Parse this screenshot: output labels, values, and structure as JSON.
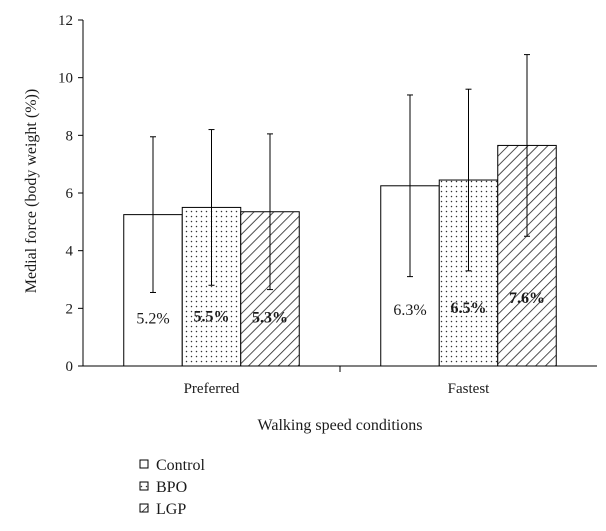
{
  "chart_data": {
    "type": "bar",
    "categories": [
      "Preferred",
      "Fastest"
    ],
    "series": [
      {
        "name": "Control",
        "values": [
          5.25,
          6.25
        ],
        "error": [
          2.7,
          3.15
        ],
        "labels": [
          "5.2%",
          "6.3%"
        ],
        "pattern": "none",
        "label_bold": false
      },
      {
        "name": "BPO",
        "values": [
          5.5,
          6.45
        ],
        "error": [
          2.7,
          3.15
        ],
        "labels": [
          "5.5%",
          "6.5%"
        ],
        "pattern": "dots",
        "label_bold": true
      },
      {
        "name": "LGP",
        "values": [
          5.35,
          7.65
        ],
        "error": [
          2.7,
          3.15
        ],
        "labels": [
          "5.3%",
          "7.6%"
        ],
        "pattern": "hatch",
        "label_bold": true
      }
    ],
    "y_ticks": [
      "0",
      "2",
      "4",
      "6",
      "8",
      "10",
      "12"
    ],
    "ylim": [
      0,
      12
    ],
    "ylabel": "Medial force (body weight (%))",
    "xlabel": "Walking speed conditions",
    "grid": false,
    "legend_position": "bottom-left"
  }
}
